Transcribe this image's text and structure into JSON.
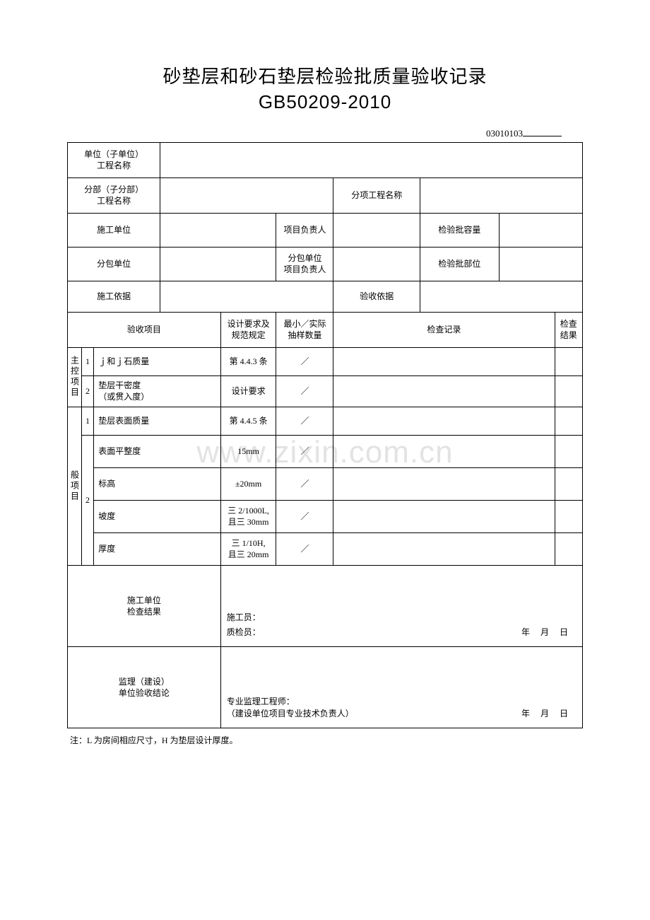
{
  "title_line1": "砂垫层和砂石垫层检验批质量验收记录",
  "title_line2": "GB50209-2010",
  "doc_number_prefix": "03010103",
  "watermark_text": "www.zixin.com.cn",
  "header": {
    "unit_label": "单位（子单位）\n工程名称",
    "unit_value": "",
    "branch_label": "分部（子分部）\n工程名称",
    "branch_value": "",
    "subitem_label": "分项工程名称",
    "subitem_value": "",
    "constructor_label": "施工单位",
    "constructor_value": "",
    "pm_label": "项目负责人",
    "pm_value": "",
    "capacity_label": "检验批容量",
    "capacity_value": "",
    "subcontractor_label": "分包单位",
    "subcontractor_value": "",
    "sub_pm_label": "分包单位\n项目负责人",
    "sub_pm_value": "",
    "part_label": "检验批部位",
    "part_value": "",
    "basis_label": "施工依据",
    "basis_value": "",
    "accept_basis_label": "验收依据",
    "accept_basis_value": ""
  },
  "col_headers": {
    "accept_item": "验收项目",
    "design_req": "设计要求及\n规范规定",
    "sample_qty": "最小／实际\n抽样数量",
    "inspect_record": "检查记录",
    "inspect_result": "检查\n结果"
  },
  "groups": {
    "master": "主控项目",
    "general": "般项目"
  },
  "rows": [
    {
      "idx": "1",
      "name": "ｊ和ｊ石质量",
      "req": "第 4.4.3 条",
      "qty": "／",
      "rec": "",
      "res": ""
    },
    {
      "idx": "2",
      "name": "垫层干密度\n（或贯入度）",
      "req": "设计要求",
      "qty": "／",
      "rec": "",
      "res": ""
    },
    {
      "idx": "1",
      "name": "垫层表面质量",
      "req": "第 4.4.5 条",
      "qty": "／",
      "rec": "",
      "res": ""
    },
    {
      "idx": "2",
      "name": "表面平整度",
      "req": "15mm",
      "qty": "／",
      "rec": "",
      "res": ""
    },
    {
      "idx": "",
      "name": "标高",
      "req": "±20mm",
      "qty": "／",
      "rec": "",
      "res": ""
    },
    {
      "idx": "",
      "name": "坡度",
      "req": "三 2/1000L,\n且三 30mm",
      "qty": "／",
      "rec": "",
      "res": ""
    },
    {
      "idx": "",
      "name": "厚度",
      "req": "三 1/10H,\n且三 20mm",
      "qty": "／",
      "rec": "",
      "res": ""
    }
  ],
  "sig": {
    "constructor_result_label": "施工单位\n检查结果",
    "sgy": "施工员：",
    "zjy": "质检员：",
    "supervisor_label": "监理（建设）\n单位验收结论",
    "engineer": "专业监理工程师：",
    "engineer_sub": "（建设单位项目专业技术负责人）",
    "date": "年 月 日"
  },
  "footnote": "注：L 为房间相应尺寸，H 为垫层设计厚度。"
}
